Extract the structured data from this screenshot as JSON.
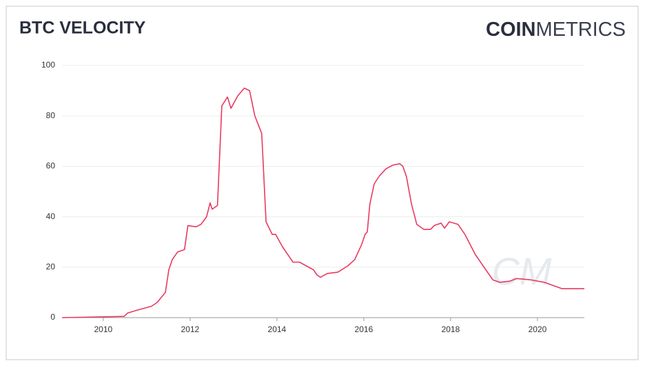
{
  "chart_data": {
    "type": "line",
    "title": "BTC VELOCITY",
    "brand": [
      "COIN",
      "METRICS"
    ],
    "watermark": "CM",
    "x": [
      2009.05,
      2010.48,
      2010.56,
      2010.79,
      2011.11,
      2011.24,
      2011.43,
      2011.51,
      2011.59,
      2011.71,
      2011.87,
      2011.95,
      2012.14,
      2012.25,
      2012.38,
      2012.46,
      2012.51,
      2012.63,
      2012.73,
      2012.86,
      2012.94,
      2013.1,
      2013.25,
      2013.37,
      2013.49,
      2013.65,
      2013.75,
      2013.89,
      2013.97,
      2014.13,
      2014.29,
      2014.37,
      2014.52,
      2014.68,
      2014.84,
      2014.92,
      2015.0,
      2015.16,
      2015.4,
      2015.63,
      2015.79,
      2015.95,
      2016.03,
      2016.08,
      2016.14,
      2016.24,
      2016.35,
      2016.51,
      2016.67,
      2016.83,
      2016.9,
      2016.98,
      2017.1,
      2017.22,
      2017.38,
      2017.54,
      2017.62,
      2017.78,
      2017.86,
      2017.97,
      2018.17,
      2018.33,
      2018.57,
      2018.81,
      2018.97,
      2019.13,
      2019.37,
      2019.52,
      2019.84,
      2020.16,
      2020.32,
      2020.56,
      2021.08
    ],
    "series": [
      {
        "name": "BTC Velocity",
        "color": "#e8395f",
        "values": [
          0,
          0.5,
          1.8,
          3,
          4.5,
          6,
          10,
          19,
          23,
          26,
          27,
          36.5,
          36,
          37,
          40,
          45.5,
          43,
          44.5,
          84,
          87.5,
          83,
          88,
          91,
          90,
          80,
          73,
          38,
          33,
          33,
          28,
          24,
          22,
          22,
          20.5,
          19,
          17,
          16,
          17.5,
          18,
          20.5,
          23,
          29,
          33,
          34,
          45,
          53,
          56,
          59,
          60.5,
          61,
          60,
          56,
          45,
          37,
          35,
          35,
          36.5,
          37.5,
          35.5,
          38,
          37,
          33,
          25,
          19,
          15,
          14,
          14.5,
          15.5,
          15,
          14,
          13,
          11.5,
          11.5
        ]
      }
    ],
    "xlim": [
      2009.05,
      2021.08
    ],
    "xticks": [
      2010,
      2012,
      2014,
      2016,
      2018,
      2020
    ],
    "ylim": [
      0,
      100
    ],
    "yticks": [
      0,
      20,
      40,
      60,
      80,
      100
    ],
    "grid": true
  }
}
